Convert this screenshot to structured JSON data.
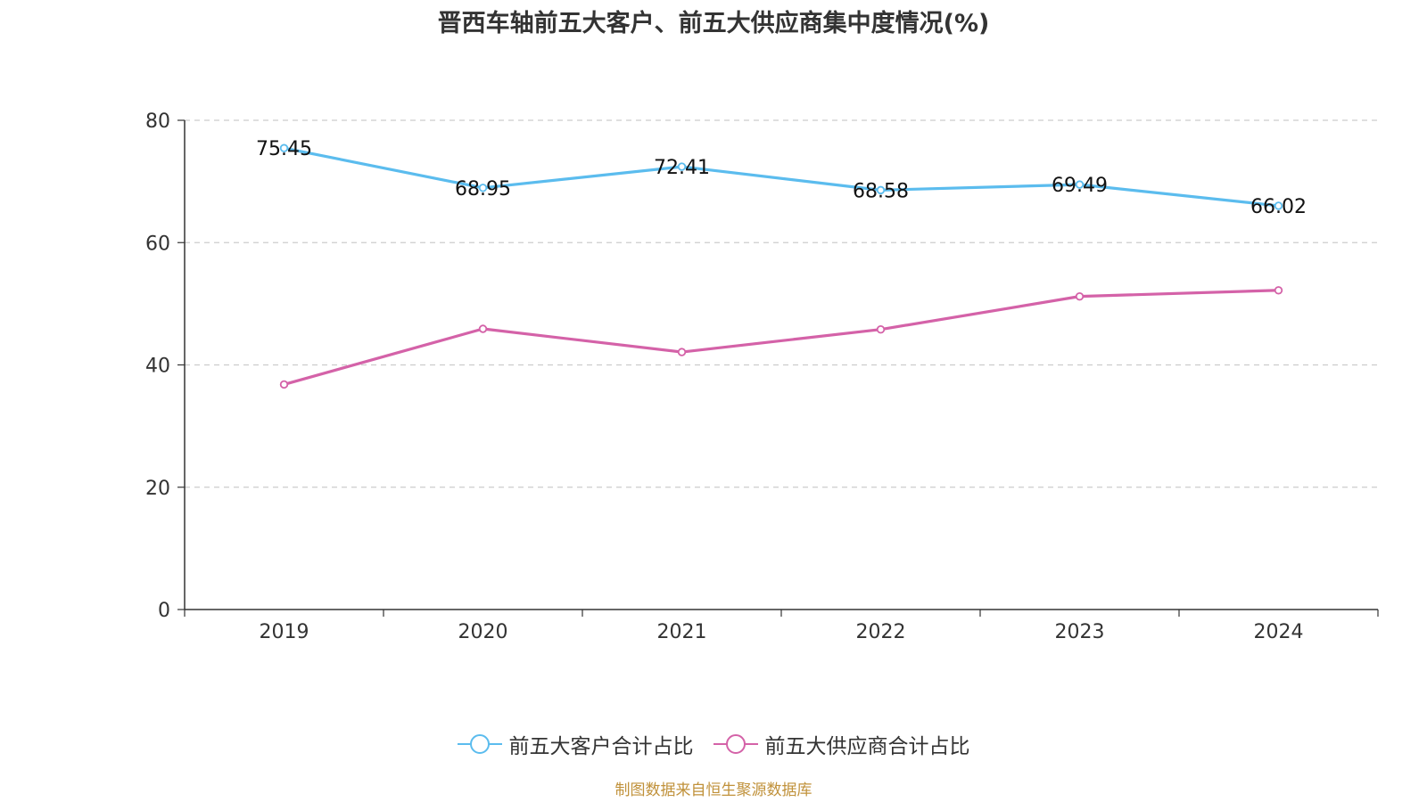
{
  "chart_data": {
    "type": "line",
    "title": "晋西车轴前五大客户、前五大供应商集中度情况(%)",
    "categories": [
      "2019",
      "2020",
      "2021",
      "2022",
      "2023",
      "2024"
    ],
    "ylim": [
      0,
      80
    ],
    "yticks": [
      "0",
      "20",
      "40",
      "60",
      "80"
    ],
    "grid": true,
    "legend_position": "bottom-center",
    "series": [
      {
        "name": "前五大客户合计占比",
        "color": "#5bbcee",
        "values": [
          75.45,
          68.95,
          72.41,
          68.58,
          69.49,
          66.02
        ],
        "labels": [
          "75.45",
          "68.95",
          "72.41",
          "68.58",
          "69.49",
          "66.02"
        ]
      },
      {
        "name": "前五大供应商合计占比",
        "color": "#d462a8",
        "values": [
          36.8,
          45.9,
          42.1,
          45.8,
          51.2,
          52.2
        ]
      }
    ]
  },
  "footer": "制图数据来自恒生聚源数据库"
}
